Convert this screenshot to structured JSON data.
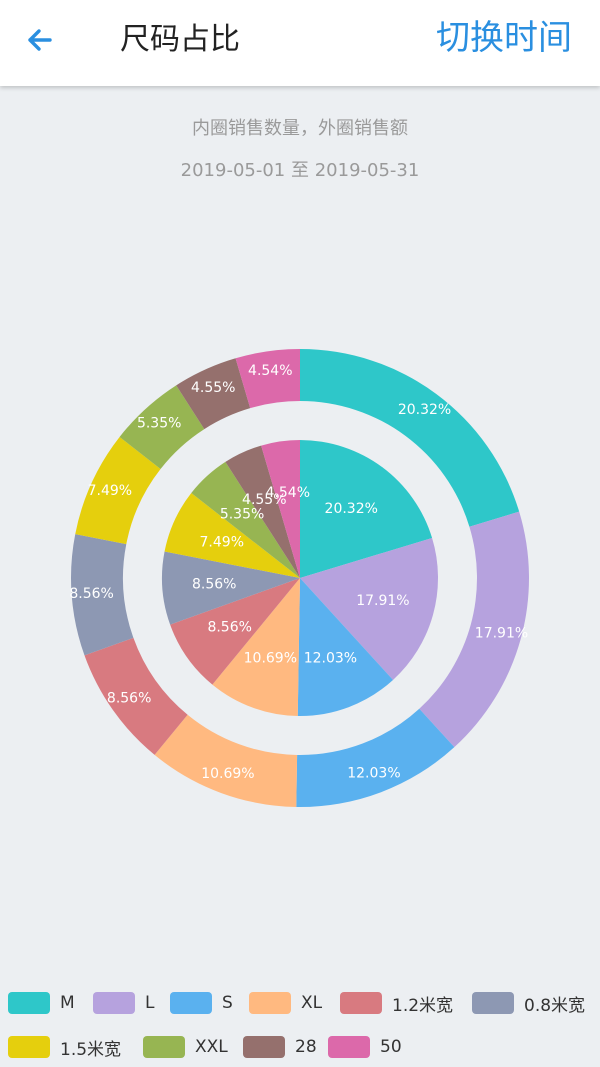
{
  "header": {
    "back_icon": "arrow-left-icon",
    "title": "尺码占比",
    "switch_time": "切换时间"
  },
  "subtitle": "内圈销售数量，外圈销售额",
  "date_range": "2019-05-01 至 2019-05-31",
  "chart_data": [
    {
      "type": "pie",
      "name": "inner",
      "description_ref": "subtitle",
      "categories": [
        "M",
        "L",
        "S",
        "XL",
        "1.2米宽",
        "0.8米宽",
        "1.5米宽",
        "XXL",
        "28",
        "50"
      ],
      "values": [
        20.32,
        17.91,
        12.03,
        10.69,
        8.56,
        8.56,
        7.49,
        5.35,
        4.55,
        4.54
      ],
      "labels": [
        "20.32%",
        "17.91%",
        "12.03%",
        "10.69%",
        "8.56%",
        "8.56%",
        "7.49%",
        "5.35%",
        "4.55%",
        "4.54%"
      ],
      "colors": [
        "#2ec7c9",
        "#b6a2de",
        "#5ab1ef",
        "#ffb980",
        "#d87a80",
        "#8d98b3",
        "#e5cf0d",
        "#97b552",
        "#95706d",
        "#dc69aa"
      ]
    },
    {
      "type": "pie",
      "name": "outer",
      "categories": [
        "M",
        "L",
        "S",
        "XL",
        "1.2米宽",
        "0.8米宽",
        "1.5米宽",
        "XXL",
        "28",
        "50"
      ],
      "values": [
        20.32,
        17.91,
        12.03,
        10.69,
        8.56,
        8.56,
        7.49,
        5.35,
        4.55,
        4.54
      ],
      "labels": [
        "20.32%",
        "17.91%",
        "12.03%",
        "10.69%",
        "8.56%",
        "8.56%",
        "7.49%",
        "5.35%",
        "4.55%",
        "4.54%"
      ],
      "colors": [
        "#2ec7c9",
        "#b6a2de",
        "#5ab1ef",
        "#ffb980",
        "#d87a80",
        "#8d98b3",
        "#e5cf0d",
        "#97b552",
        "#95706d",
        "#dc69aa"
      ]
    }
  ],
  "legend": {
    "items": [
      {
        "label": "M",
        "color": "#2ec7c9"
      },
      {
        "label": "L",
        "color": "#b6a2de"
      },
      {
        "label": "S",
        "color": "#5ab1ef"
      },
      {
        "label": "XL",
        "color": "#ffb980"
      },
      {
        "label": "1.2米宽",
        "color": "#d87a80"
      },
      {
        "label": "0.8米宽",
        "color": "#8d98b3"
      },
      {
        "label": "1.5米宽",
        "color": "#e5cf0d"
      },
      {
        "label": "XXL",
        "color": "#97b552"
      },
      {
        "label": "28",
        "color": "#95706d"
      },
      {
        "label": "50",
        "color": "#dc69aa"
      }
    ]
  }
}
